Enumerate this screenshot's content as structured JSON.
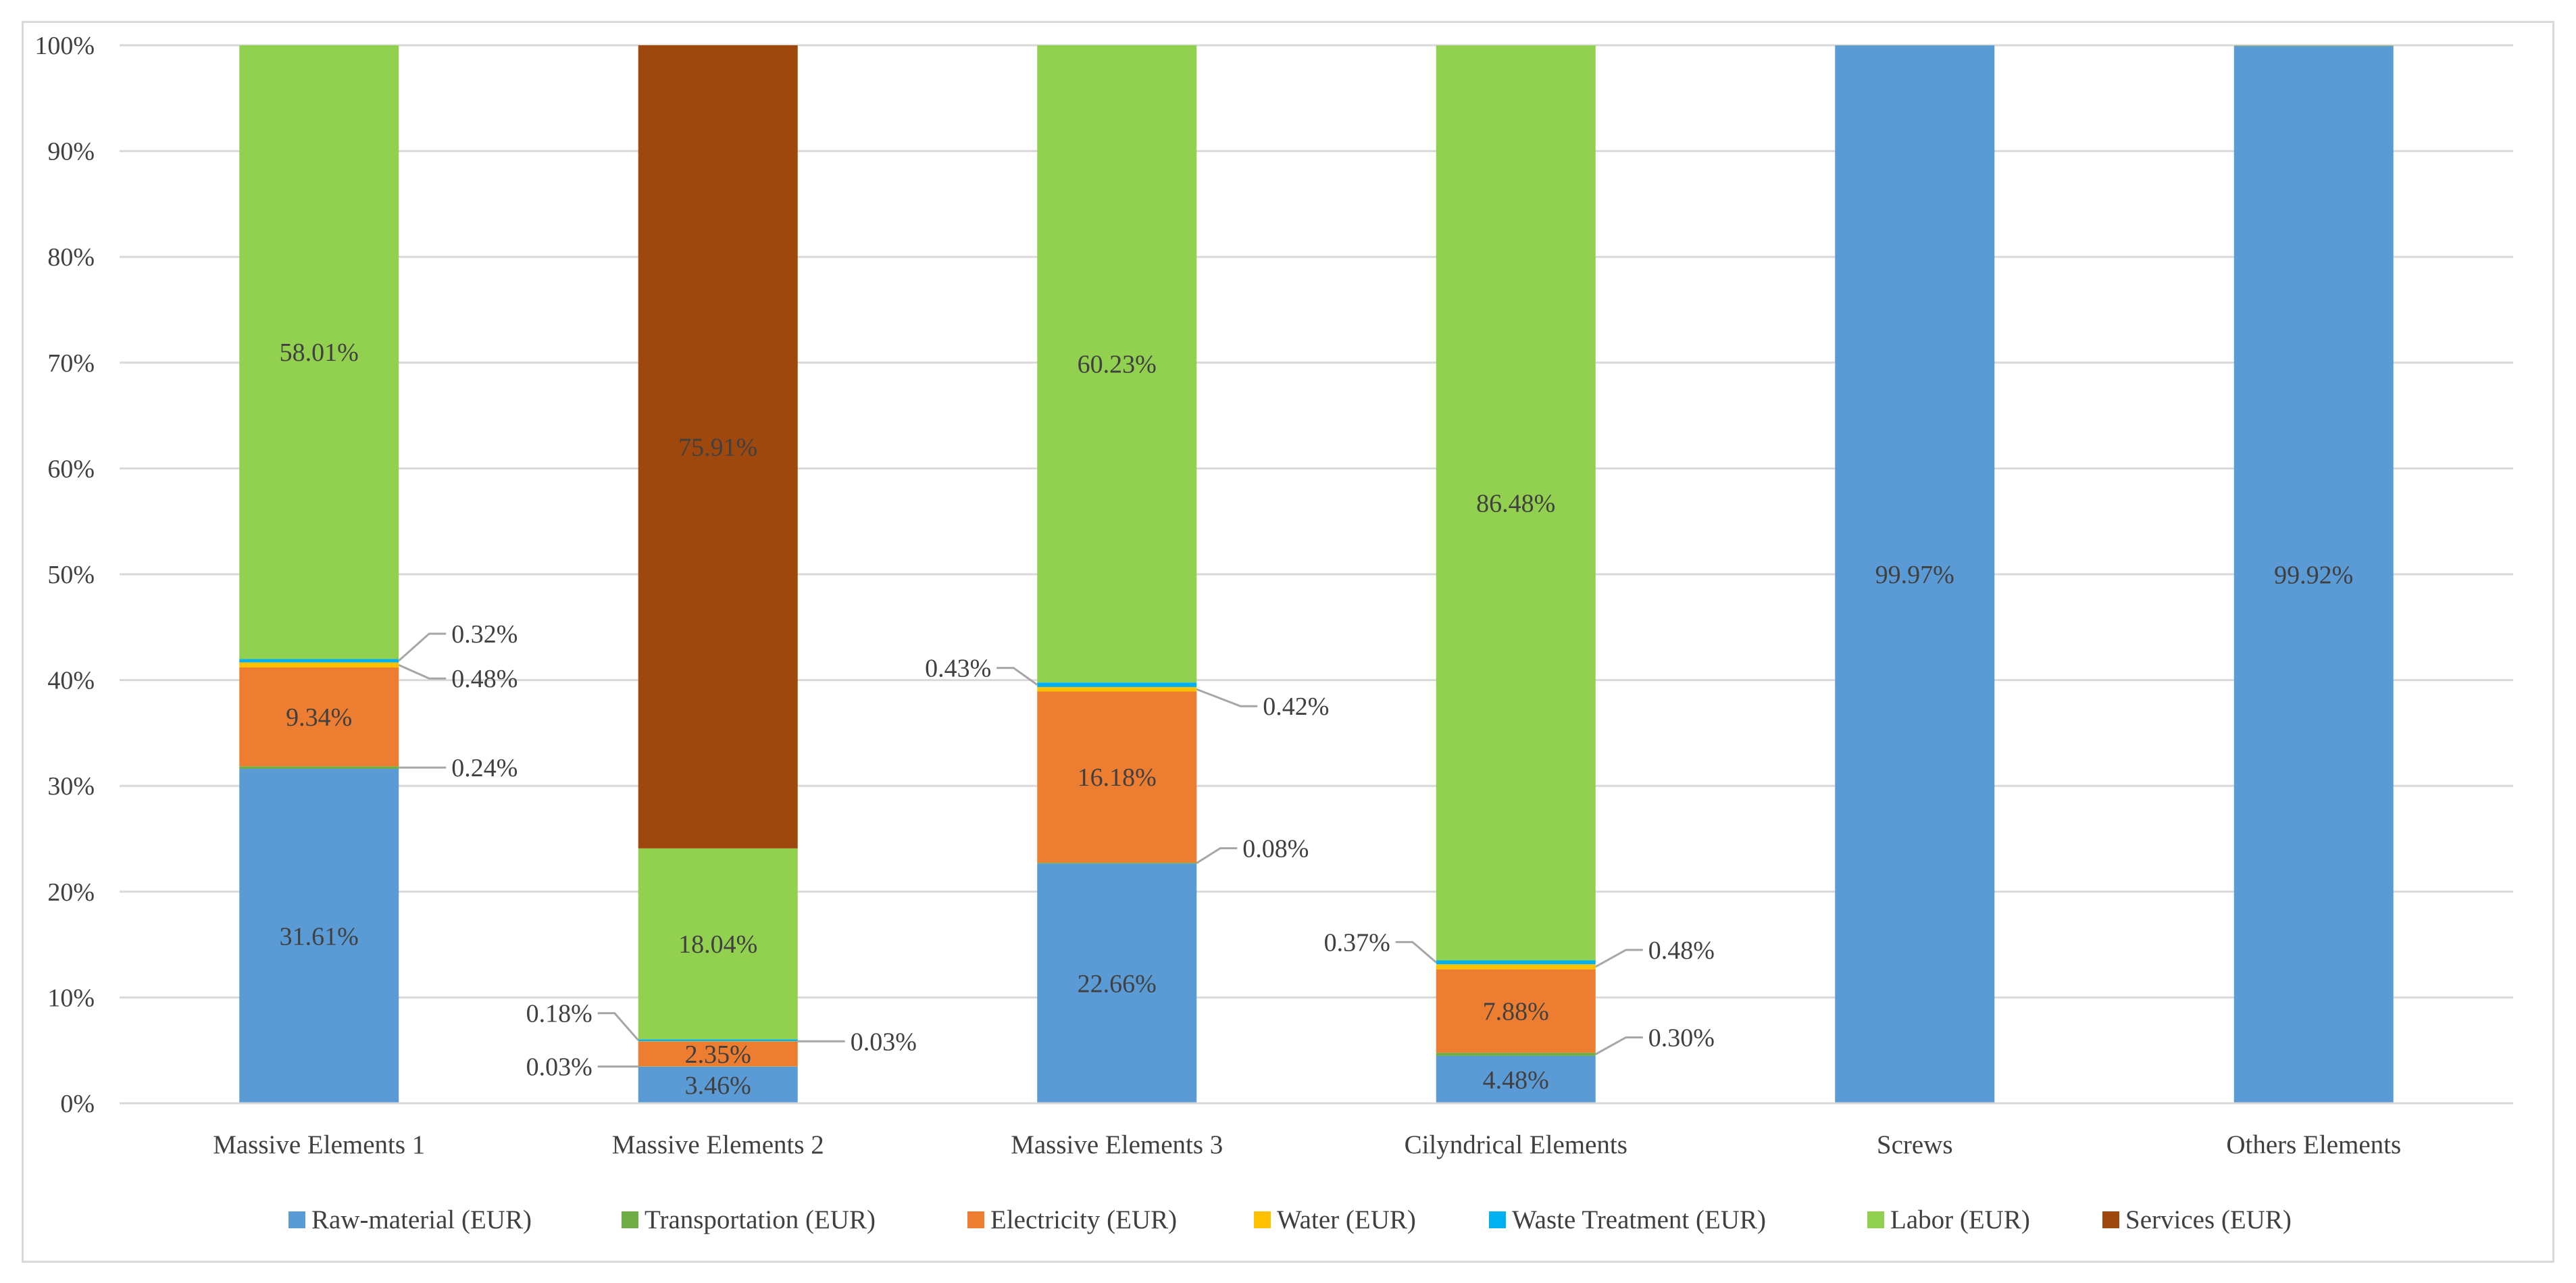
{
  "chart_data": {
    "type": "bar",
    "stacked": true,
    "normalized": true,
    "title": "",
    "xlabel": "",
    "ylabel": "",
    "ylim": [
      0,
      100
    ],
    "y_ticks": [
      "0%",
      "10%",
      "20%",
      "30%",
      "40%",
      "50%",
      "60%",
      "70%",
      "80%",
      "90%",
      "100%"
    ],
    "grid": true,
    "legend_position": "bottom",
    "categories": [
      "Massive Elements 1",
      "Massive Elements 2",
      "Massive Elements 3",
      "Cilyndrical Elements",
      "Screws",
      "Others Elements"
    ],
    "series": [
      {
        "name": "Raw-material  (EUR)",
        "color": "#5b9bd5",
        "values": [
          31.61,
          3.46,
          22.66,
          4.48,
          99.97,
          99.92
        ]
      },
      {
        "name": "Transportation (EUR)",
        "color": "#70ad47",
        "values": [
          0.24,
          0.03,
          0.08,
          0.3,
          0.01,
          0.02
        ]
      },
      {
        "name": "Electricity (EUR)",
        "color": "#ed7d31",
        "values": [
          9.34,
          2.35,
          16.18,
          7.88,
          0.01,
          0.02
        ]
      },
      {
        "name": "Water (EUR)",
        "color": "#ffc000",
        "values": [
          0.48,
          0.03,
          0.42,
          0.48,
          0.0,
          0.0
        ]
      },
      {
        "name": "Waste Treatment (EUR)",
        "color": "#00b0f0",
        "values": [
          0.32,
          0.18,
          0.43,
          0.37,
          0.01,
          0.02
        ]
      },
      {
        "name": "Labor (EUR)",
        "color": "#92d050",
        "values": [
          58.01,
          18.04,
          60.23,
          86.48,
          0.0,
          0.02
        ]
      },
      {
        "name": "Services  (EUR)",
        "color": "#9e480e",
        "values": [
          0.0,
          75.91,
          0.0,
          0.0,
          0.0,
          0.0
        ]
      }
    ],
    "data_labels": [
      [
        "31.61%",
        "0.24%",
        "9.34%",
        "0.48%",
        "0.32%",
        "58.01%",
        ""
      ],
      [
        "3.46%",
        "0.03%",
        "2.35%",
        "0.03%",
        "0.18%",
        "18.04%",
        "75.91%"
      ],
      [
        "22.66%",
        "0.08%",
        "16.18%",
        "0.42%",
        "0.43%",
        "60.23%",
        ""
      ],
      [
        "4.48%",
        "0.30%",
        "7.88%",
        "0.48%",
        "0.37%",
        "86.48%",
        ""
      ],
      [
        "99.97%",
        "",
        "",
        "",
        "",
        "",
        ""
      ],
      [
        "99.92%",
        "",
        "",
        "",
        "",
        "",
        ""
      ]
    ]
  }
}
